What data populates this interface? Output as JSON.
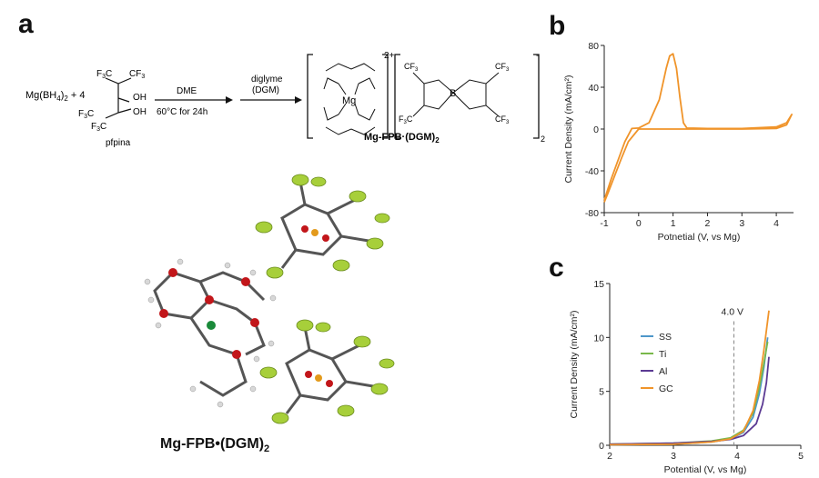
{
  "panels": {
    "a": "a",
    "b": "b",
    "c": "c"
  },
  "scheme": {
    "reactant": "Mg(BH",
    "reactant_sub": "4",
    "reactant_tail": ")",
    "reactant_tail_sub": "2",
    "reactant_coef": " + 4",
    "cf3_1": "F",
    "ligand_name": "pfpina",
    "arrow1_top": "DME",
    "arrow1_bottom": "60°C for 24h",
    "arrow2_top_1": "diglyme",
    "arrow2_top_2": "(DGM)",
    "mg": "Mg",
    "boron": "B",
    "oh_1": "OH",
    "oh_2": "OH",
    "charge_plus": "2+",
    "charge_minus": "-",
    "sub_2": "2",
    "product_label": "Mg-FPB·(DGM)",
    "product_label_sub": "2"
  },
  "crystal_label": "Mg-FPB•(DGM)",
  "crystal_label_sub": "2",
  "chart_data": [
    {
      "type": "line",
      "panel": "b",
      "xlabel": "Potnetial (V, vs Mg)",
      "ylabel": "Current Density (mA/cm²)",
      "xlim": [
        -1,
        4.5
      ],
      "ylim": [
        -80,
        80
      ],
      "xticks": [
        "-1",
        "0",
        "1",
        "2",
        "3",
        "4"
      ],
      "yticks": [
        "-80",
        "-40",
        "0",
        "40",
        "80"
      ],
      "color": "#f0942a",
      "series": [
        {
          "name": "",
          "x": [
            -1.0,
            -0.8,
            -0.6,
            -0.4,
            -0.2,
            0.0,
            0.3,
            0.6,
            0.8,
            0.9,
            1.0,
            1.1,
            1.2,
            1.3,
            1.4,
            2.0,
            3.0,
            4.0,
            4.3,
            4.45,
            4.3,
            4.0,
            3.0,
            2.0,
            1.0,
            0.5,
            0.0,
            -0.3,
            -0.5,
            -0.7,
            -0.9,
            -1.0
          ],
          "y": [
            -68,
            -48,
            -30,
            -12,
            0.5,
            1,
            6,
            28,
            58,
            70,
            72,
            58,
            30,
            6,
            1,
            0.5,
            0.5,
            2,
            6,
            14,
            4,
            0.5,
            0,
            0,
            0,
            0,
            0,
            -12,
            -28,
            -45,
            -62,
            -70
          ]
        }
      ]
    },
    {
      "type": "line",
      "panel": "c",
      "xlabel": "Potential (V, vs Mg)",
      "ylabel": "Current Density (mA/cm²)",
      "xlim": [
        2,
        5
      ],
      "ylim": [
        0,
        15
      ],
      "xticks": [
        "2",
        "3",
        "4",
        "5"
      ],
      "yticks": [
        "0",
        "5",
        "10",
        "15"
      ],
      "annotation": "4.0 V",
      "annotation_x": 3.95,
      "series": [
        {
          "name": "SS",
          "color": "#4e97c9",
          "x": [
            2.0,
            3.0,
            3.6,
            3.9,
            4.1,
            4.25,
            4.35,
            4.42,
            4.48
          ],
          "y": [
            0.05,
            0.1,
            0.3,
            0.6,
            1.2,
            2.6,
            4.8,
            7.2,
            10.0
          ]
        },
        {
          "name": "Ti",
          "color": "#79b84a",
          "x": [
            2.0,
            3.0,
            3.6,
            3.9,
            4.1,
            4.25,
            4.35,
            4.42,
            4.48
          ],
          "y": [
            0.1,
            0.2,
            0.4,
            0.7,
            1.4,
            3.0,
            5.4,
            7.6,
            9.6
          ]
        },
        {
          "name": "Al",
          "color": "#5b3a93",
          "x": [
            2.0,
            3.0,
            3.6,
            3.9,
            4.1,
            4.3,
            4.4,
            4.46,
            4.5
          ],
          "y": [
            0.1,
            0.2,
            0.35,
            0.55,
            0.9,
            2.0,
            3.8,
            5.8,
            8.2
          ]
        },
        {
          "name": "GC",
          "color": "#f0942a",
          "x": [
            2.0,
            3.0,
            3.6,
            3.9,
            4.1,
            4.25,
            4.35,
            4.42,
            4.5
          ],
          "y": [
            0.05,
            0.1,
            0.3,
            0.6,
            1.3,
            3.2,
            6.0,
            8.8,
            12.5
          ]
        }
      ]
    }
  ]
}
